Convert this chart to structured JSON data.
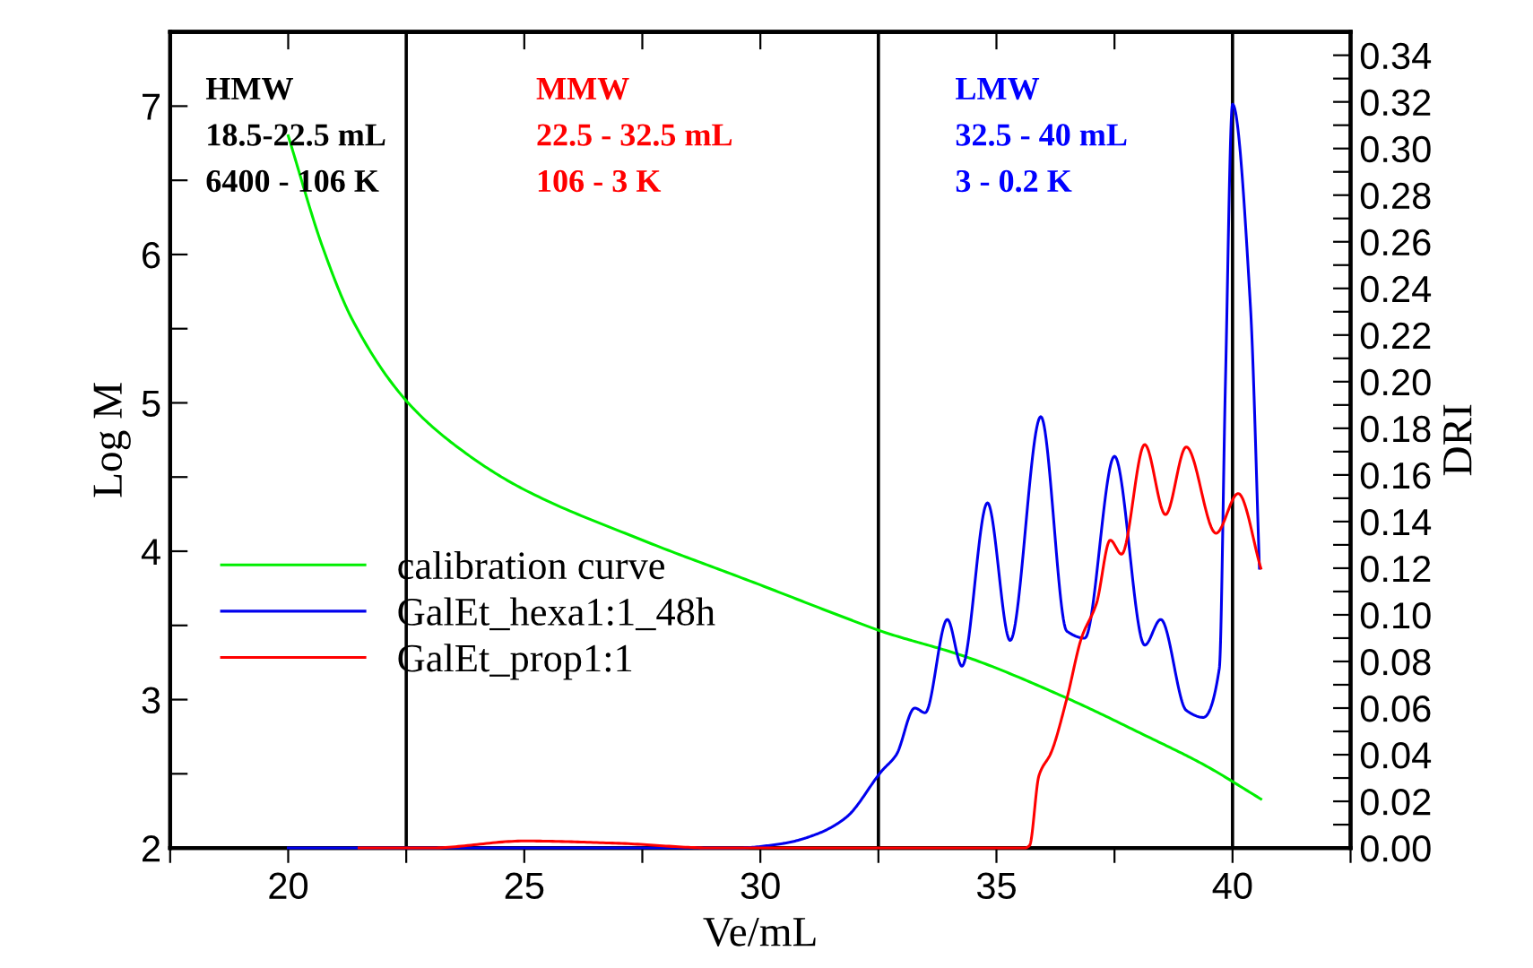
{
  "chart_data": {
    "type": "line",
    "xlabel": "Ve/mL",
    "ylabel": "Log M",
    "y2label": "DRI",
    "series": [
      {
        "name": "calibration curve",
        "color": "#00ee00",
        "axis": "y",
        "x": [
          20.0,
          20.74,
          21.36,
          22.54,
          23.72,
          24.97,
          27.46,
          29.94,
          31.81,
          32.57,
          34.34,
          36.49,
          38.14,
          39.4,
          40.6
        ],
        "values": [
          6.8,
          6.04,
          5.56,
          5.0,
          4.67,
          4.42,
          4.08,
          3.78,
          3.55,
          3.46,
          3.29,
          3.01,
          2.76,
          2.56,
          2.33
        ]
      },
      {
        "name": "GalEt_hexa1:1_48h",
        "color": "#0000ee",
        "axis": "y2",
        "x": [
          20.0,
          29.5,
          30.5,
          31.2,
          31.81,
          32.57,
          32.88,
          33.27,
          33.49,
          33.96,
          34.27,
          34.81,
          35.29,
          35.94,
          36.49,
          36.87,
          37.5,
          38.14,
          38.48,
          39.02,
          39.38,
          39.72,
          39.85,
          40.0,
          40.38,
          40.57
        ],
        "values": [
          0.0,
          0.0,
          0.002,
          0.006,
          0.013,
          0.033,
          0.04,
          0.06,
          0.058,
          0.098,
          0.078,
          0.148,
          0.089,
          0.185,
          0.093,
          0.09,
          0.168,
          0.087,
          0.098,
          0.059,
          0.056,
          0.077,
          0.2,
          0.319,
          0.232,
          0.12
        ]
      },
      {
        "name": "GalEt_prop1:1",
        "color": "#ff0000",
        "axis": "y2",
        "x": [
          21.5,
          23.0,
          25.0,
          27.0,
          29.0,
          35.6,
          35.7,
          35.9,
          36.16,
          36.49,
          36.8,
          37.12,
          37.41,
          37.65,
          38.14,
          38.58,
          39.02,
          39.65,
          40.12,
          40.6
        ],
        "values": [
          0.0,
          0.0,
          0.003,
          0.002,
          0.0,
          0.0,
          0.001,
          0.031,
          0.041,
          0.064,
          0.09,
          0.105,
          0.132,
          0.126,
          0.173,
          0.143,
          0.172,
          0.135,
          0.152,
          0.12
        ]
      }
    ],
    "xlim": [
      17.5,
      42.5
    ],
    "xticks": [
      {
        "value": 17.5,
        "label": null
      },
      20,
      {
        "value": 22.5,
        "label": null
      },
      25,
      {
        "value": 27.5,
        "label": null
      },
      30,
      {
        "value": 32.5,
        "label": null
      },
      35,
      {
        "value": 37.5,
        "label": null
      },
      40,
      {
        "value": 42.5,
        "label": null
      }
    ],
    "ylim": [
      2,
      7.5
    ],
    "yticks": [
      2,
      {
        "value": 2.5,
        "label": null
      },
      3,
      {
        "value": 3.5,
        "label": null
      },
      4,
      {
        "value": 4.5,
        "label": null
      },
      5,
      {
        "value": 5.5,
        "label": null
      },
      6,
      {
        "value": 6.5,
        "label": null
      },
      7,
      {
        "value": 7.5,
        "label": null
      }
    ],
    "y2lim": [
      0,
      0.35
    ],
    "y2ticks": [
      {
        "value": 0,
        "label": "0.00"
      },
      {
        "value": 0.01,
        "label": null
      },
      {
        "value": 0.02,
        "label": "0.02"
      },
      {
        "value": 0.03,
        "label": null
      },
      {
        "value": 0.04,
        "label": "0.04"
      },
      {
        "value": 0.05,
        "label": null
      },
      {
        "value": 0.06,
        "label": "0.06"
      },
      {
        "value": 0.07,
        "label": null
      },
      {
        "value": 0.08,
        "label": "0.08"
      },
      {
        "value": 0.09,
        "label": null
      },
      {
        "value": 0.1,
        "label": "0.10"
      },
      {
        "value": 0.11,
        "label": null
      },
      {
        "value": 0.12,
        "label": "0.12"
      },
      {
        "value": 0.13,
        "label": null
      },
      {
        "value": 0.14,
        "label": "0.14"
      },
      {
        "value": 0.15,
        "label": null
      },
      {
        "value": 0.16,
        "label": "0.16"
      },
      {
        "value": 0.17,
        "label": null
      },
      {
        "value": 0.18,
        "label": "0.18"
      },
      {
        "value": 0.19,
        "label": null
      },
      {
        "value": 0.2,
        "label": "0.20"
      },
      {
        "value": 0.21,
        "label": null
      },
      {
        "value": 0.22,
        "label": "0.22"
      },
      {
        "value": 0.23,
        "label": null
      },
      {
        "value": 0.24,
        "label": "0.24"
      },
      {
        "value": 0.25,
        "label": null
      },
      {
        "value": 0.26,
        "label": "0.26"
      },
      {
        "value": 0.27,
        "label": null
      },
      {
        "value": 0.28,
        "label": "0.28"
      },
      {
        "value": 0.29,
        "label": null
      },
      {
        "value": 0.3,
        "label": "0.30"
      },
      {
        "value": 0.31,
        "label": null
      },
      {
        "value": 0.32,
        "label": "0.32"
      },
      {
        "value": 0.33,
        "label": null
      },
      {
        "value": 0.34,
        "label": "0.34"
      },
      {
        "value": 0.35,
        "label": null
      }
    ],
    "ref_lines": [
      {
        "axis": "x",
        "value": 22.5,
        "color": "#000000"
      },
      {
        "axis": "x",
        "value": 32.5,
        "color": "#000000"
      },
      {
        "axis": "x",
        "value": 40,
        "color": "#000000"
      }
    ],
    "annotations": [
      "HMW\n18.5-22.5 mL\n6400 - 106 K",
      "MMW\n22.5 - 32.5 mL\n106 - 3 K",
      "LMW\n32.5 - 40 mL\n3 - 0.2 K"
    ],
    "legend": "left",
    "grid": false,
    "marker": "none",
    "line_style": "solid"
  }
}
